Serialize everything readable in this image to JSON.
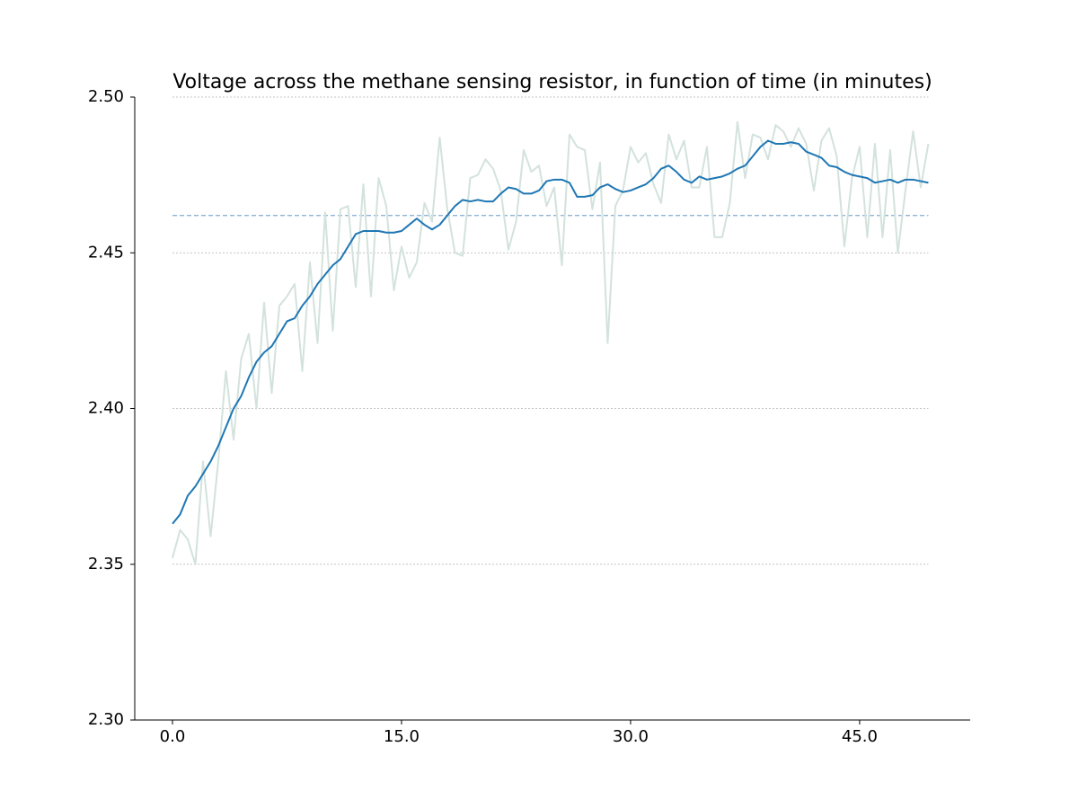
{
  "chart_data": {
    "type": "line",
    "title": "Voltage across the methane sensing resistor, in function of time (in minutes)",
    "x": [
      0,
      0.5,
      1,
      1.5,
      2,
      2.5,
      3,
      3.5,
      4,
      4.5,
      5,
      5.5,
      6,
      6.5,
      7,
      7.5,
      8,
      8.5,
      9,
      9.5,
      10,
      10.5,
      11,
      11.5,
      12,
      12.5,
      13,
      13.5,
      14,
      14.5,
      15,
      15.5,
      16,
      16.5,
      17,
      17.5,
      18,
      18.5,
      19,
      19.5,
      20,
      20.5,
      21,
      21.5,
      22,
      22.5,
      23,
      23.5,
      24,
      24.5,
      25,
      25.5,
      26,
      26.5,
      27,
      27.5,
      28,
      28.5,
      29,
      29.5,
      30,
      30.5,
      31,
      31.5,
      32,
      32.5,
      33,
      33.5,
      34,
      34.5,
      35,
      35.5,
      36,
      36.5,
      37,
      37.5,
      38,
      38.5,
      39,
      39.5,
      40,
      40.5,
      41,
      41.5,
      42,
      42.5,
      43,
      43.5,
      44,
      44.5,
      45,
      45.5,
      46,
      46.5,
      47,
      47.5,
      48,
      48.5,
      49,
      49.5
    ],
    "series": [
      {
        "color": "#d3e2dc",
        "values": [
          2.352,
          2.361,
          2.358,
          2.35,
          2.383,
          2.359,
          2.383,
          2.412,
          2.39,
          2.416,
          2.424,
          2.4,
          2.434,
          2.405,
          2.433,
          2.436,
          2.44,
          2.412,
          2.447,
          2.421,
          2.463,
          2.425,
          2.464,
          2.465,
          2.439,
          2.472,
          2.436,
          2.474,
          2.465,
          2.438,
          2.452,
          2.442,
          2.447,
          2.466,
          2.46,
          2.487,
          2.464,
          2.45,
          2.449,
          2.474,
          2.475,
          2.48,
          2.477,
          2.47,
          2.451,
          2.46,
          2.483,
          2.476,
          2.478,
          2.465,
          2.471,
          2.446,
          2.488,
          2.484,
          2.483,
          2.464,
          2.479,
          2.421,
          2.465,
          2.47,
          2.484,
          2.479,
          2.482,
          2.472,
          2.466,
          2.488,
          2.48,
          2.486,
          2.471,
          2.471,
          2.484,
          2.455,
          2.455,
          2.466,
          2.492,
          2.474,
          2.488,
          2.487,
          2.48,
          2.491,
          2.489,
          2.484,
          2.49,
          2.485,
          2.47,
          2.486,
          2.49,
          2.481,
          2.452,
          2.474,
          2.484,
          2.455,
          2.485,
          2.455,
          2.483,
          2.45,
          2.47,
          2.489,
          2.471,
          2.485
        ]
      },
      {
        "color": "#1f77b4",
        "values": [
          2.363,
          2.366,
          2.372,
          2.375,
          2.379,
          2.383,
          2.388,
          2.394,
          2.4,
          2.404,
          2.41,
          2.415,
          2.418,
          2.42,
          2.424,
          2.428,
          2.429,
          2.433,
          2.436,
          2.44,
          2.443,
          2.446,
          2.448,
          2.452,
          2.456,
          2.457,
          2.457,
          2.457,
          2.4565,
          2.4565,
          2.457,
          2.459,
          2.461,
          2.459,
          2.4575,
          2.459,
          2.462,
          2.465,
          2.467,
          2.4665,
          2.467,
          2.4665,
          2.4665,
          2.469,
          2.471,
          2.4705,
          2.469,
          2.469,
          2.47,
          2.473,
          2.4735,
          2.4735,
          2.4725,
          2.468,
          2.468,
          2.4685,
          2.471,
          2.472,
          2.4705,
          2.4695,
          2.47,
          2.471,
          2.472,
          2.474,
          2.477,
          2.478,
          2.476,
          2.4735,
          2.4725,
          2.4745,
          2.4735,
          2.474,
          2.4745,
          2.4755,
          2.477,
          2.478,
          2.481,
          2.484,
          2.486,
          2.485,
          2.485,
          2.4855,
          2.485,
          2.4825,
          2.4815,
          2.4805,
          2.478,
          2.4775,
          2.476,
          2.475,
          2.4745,
          2.474,
          2.4725,
          2.473,
          2.4735,
          2.4725,
          2.4735,
          2.4735,
          2.473,
          2.4725
        ]
      }
    ],
    "reference_line": {
      "value": 2.462,
      "color": "#8fb4d4"
    },
    "xlim": [
      -2.47,
      52.24
    ],
    "ylim": [
      2.3,
      2.5
    ],
    "xticks": [
      {
        "value": 0,
        "label": "0.0"
      },
      {
        "value": 15,
        "label": "15.0"
      },
      {
        "value": 30,
        "label": "30.0"
      },
      {
        "value": 45,
        "label": "45.0"
      }
    ],
    "yticks": [
      {
        "value": 2.3,
        "label": "2.30"
      },
      2.35,
      {
        "value": 2.4,
        "label": "2.40"
      },
      2.45,
      {
        "value": 2.5,
        "label": "2.50"
      }
    ],
    "grid": true
  }
}
